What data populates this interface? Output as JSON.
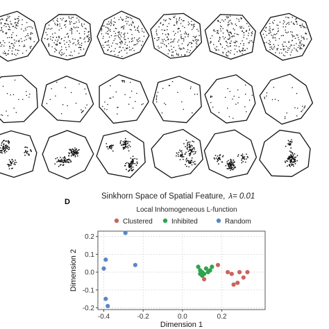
{
  "panel_label": "D",
  "chart_title": "Sinkhorn Space of Spatial Feature,",
  "lambda_label": "λ= 0.01",
  "chart_subtitle": "Local Inhomogeneous L-function",
  "chart_data": [
    {
      "type": "scatter",
      "title": "Sinkhorn Space of Spatial Feature, λ= 0.01",
      "subtitle": "Local Inhomogeneous L-function",
      "xlabel": "Dimension 1",
      "ylabel": "Dimension 2",
      "xlim": [
        -0.43,
        0.42
      ],
      "ylim": [
        -0.21,
        0.23
      ],
      "xticks": [
        -0.4,
        -0.2,
        0.0,
        0.2
      ],
      "xtick_labels": [
        "-0.4",
        "-0.2",
        "0.0",
        "0.2"
      ],
      "yticks": [
        -0.2,
        -0.1,
        0.0,
        0.1,
        0.2
      ],
      "ytick_labels": [
        "-0.2",
        "-0.1",
        "0.0",
        "0.1",
        "0.2"
      ],
      "grid": true,
      "legend_position": "top",
      "series": [
        {
          "name": "Clustered",
          "color": "#c9645e",
          "points": [
            [
              0.18,
              0.04
            ],
            [
              0.23,
              0.0
            ],
            [
              0.25,
              -0.01
            ],
            [
              0.29,
              0.0
            ],
            [
              0.26,
              -0.07
            ],
            [
              0.28,
              -0.06
            ],
            [
              0.31,
              -0.03
            ],
            [
              0.33,
              0.0
            ],
            [
              0.11,
              -0.04
            ]
          ]
        },
        {
          "name": "Inhibited",
          "color": "#2fa34c",
          "points": [
            [
              0.08,
              0.03
            ],
            [
              0.09,
              0.01
            ],
            [
              0.1,
              0.0
            ],
            [
              0.11,
              -0.01
            ],
            [
              0.12,
              0.02
            ],
            [
              0.13,
              0.0
            ],
            [
              0.14,
              0.01
            ],
            [
              0.15,
              0.03
            ],
            [
              0.1,
              -0.02
            ],
            [
              0.09,
              -0.01
            ]
          ]
        },
        {
          "name": "Random",
          "color": "#5b85c8",
          "points": [
            [
              -0.29,
              0.22
            ],
            [
              -0.39,
              0.07
            ],
            [
              -0.4,
              0.02
            ],
            [
              -0.24,
              0.04
            ],
            [
              -0.39,
              -0.15
            ],
            [
              -0.38,
              -0.19
            ]
          ]
        }
      ]
    },
    {
      "type": "scatter",
      "title": "",
      "rows": [
        {
          "pattern": "random",
          "shapes": 6
        },
        {
          "pattern": "sparse",
          "shapes": 6
        },
        {
          "pattern": "clustered",
          "shapes": 6
        }
      ]
    }
  ]
}
